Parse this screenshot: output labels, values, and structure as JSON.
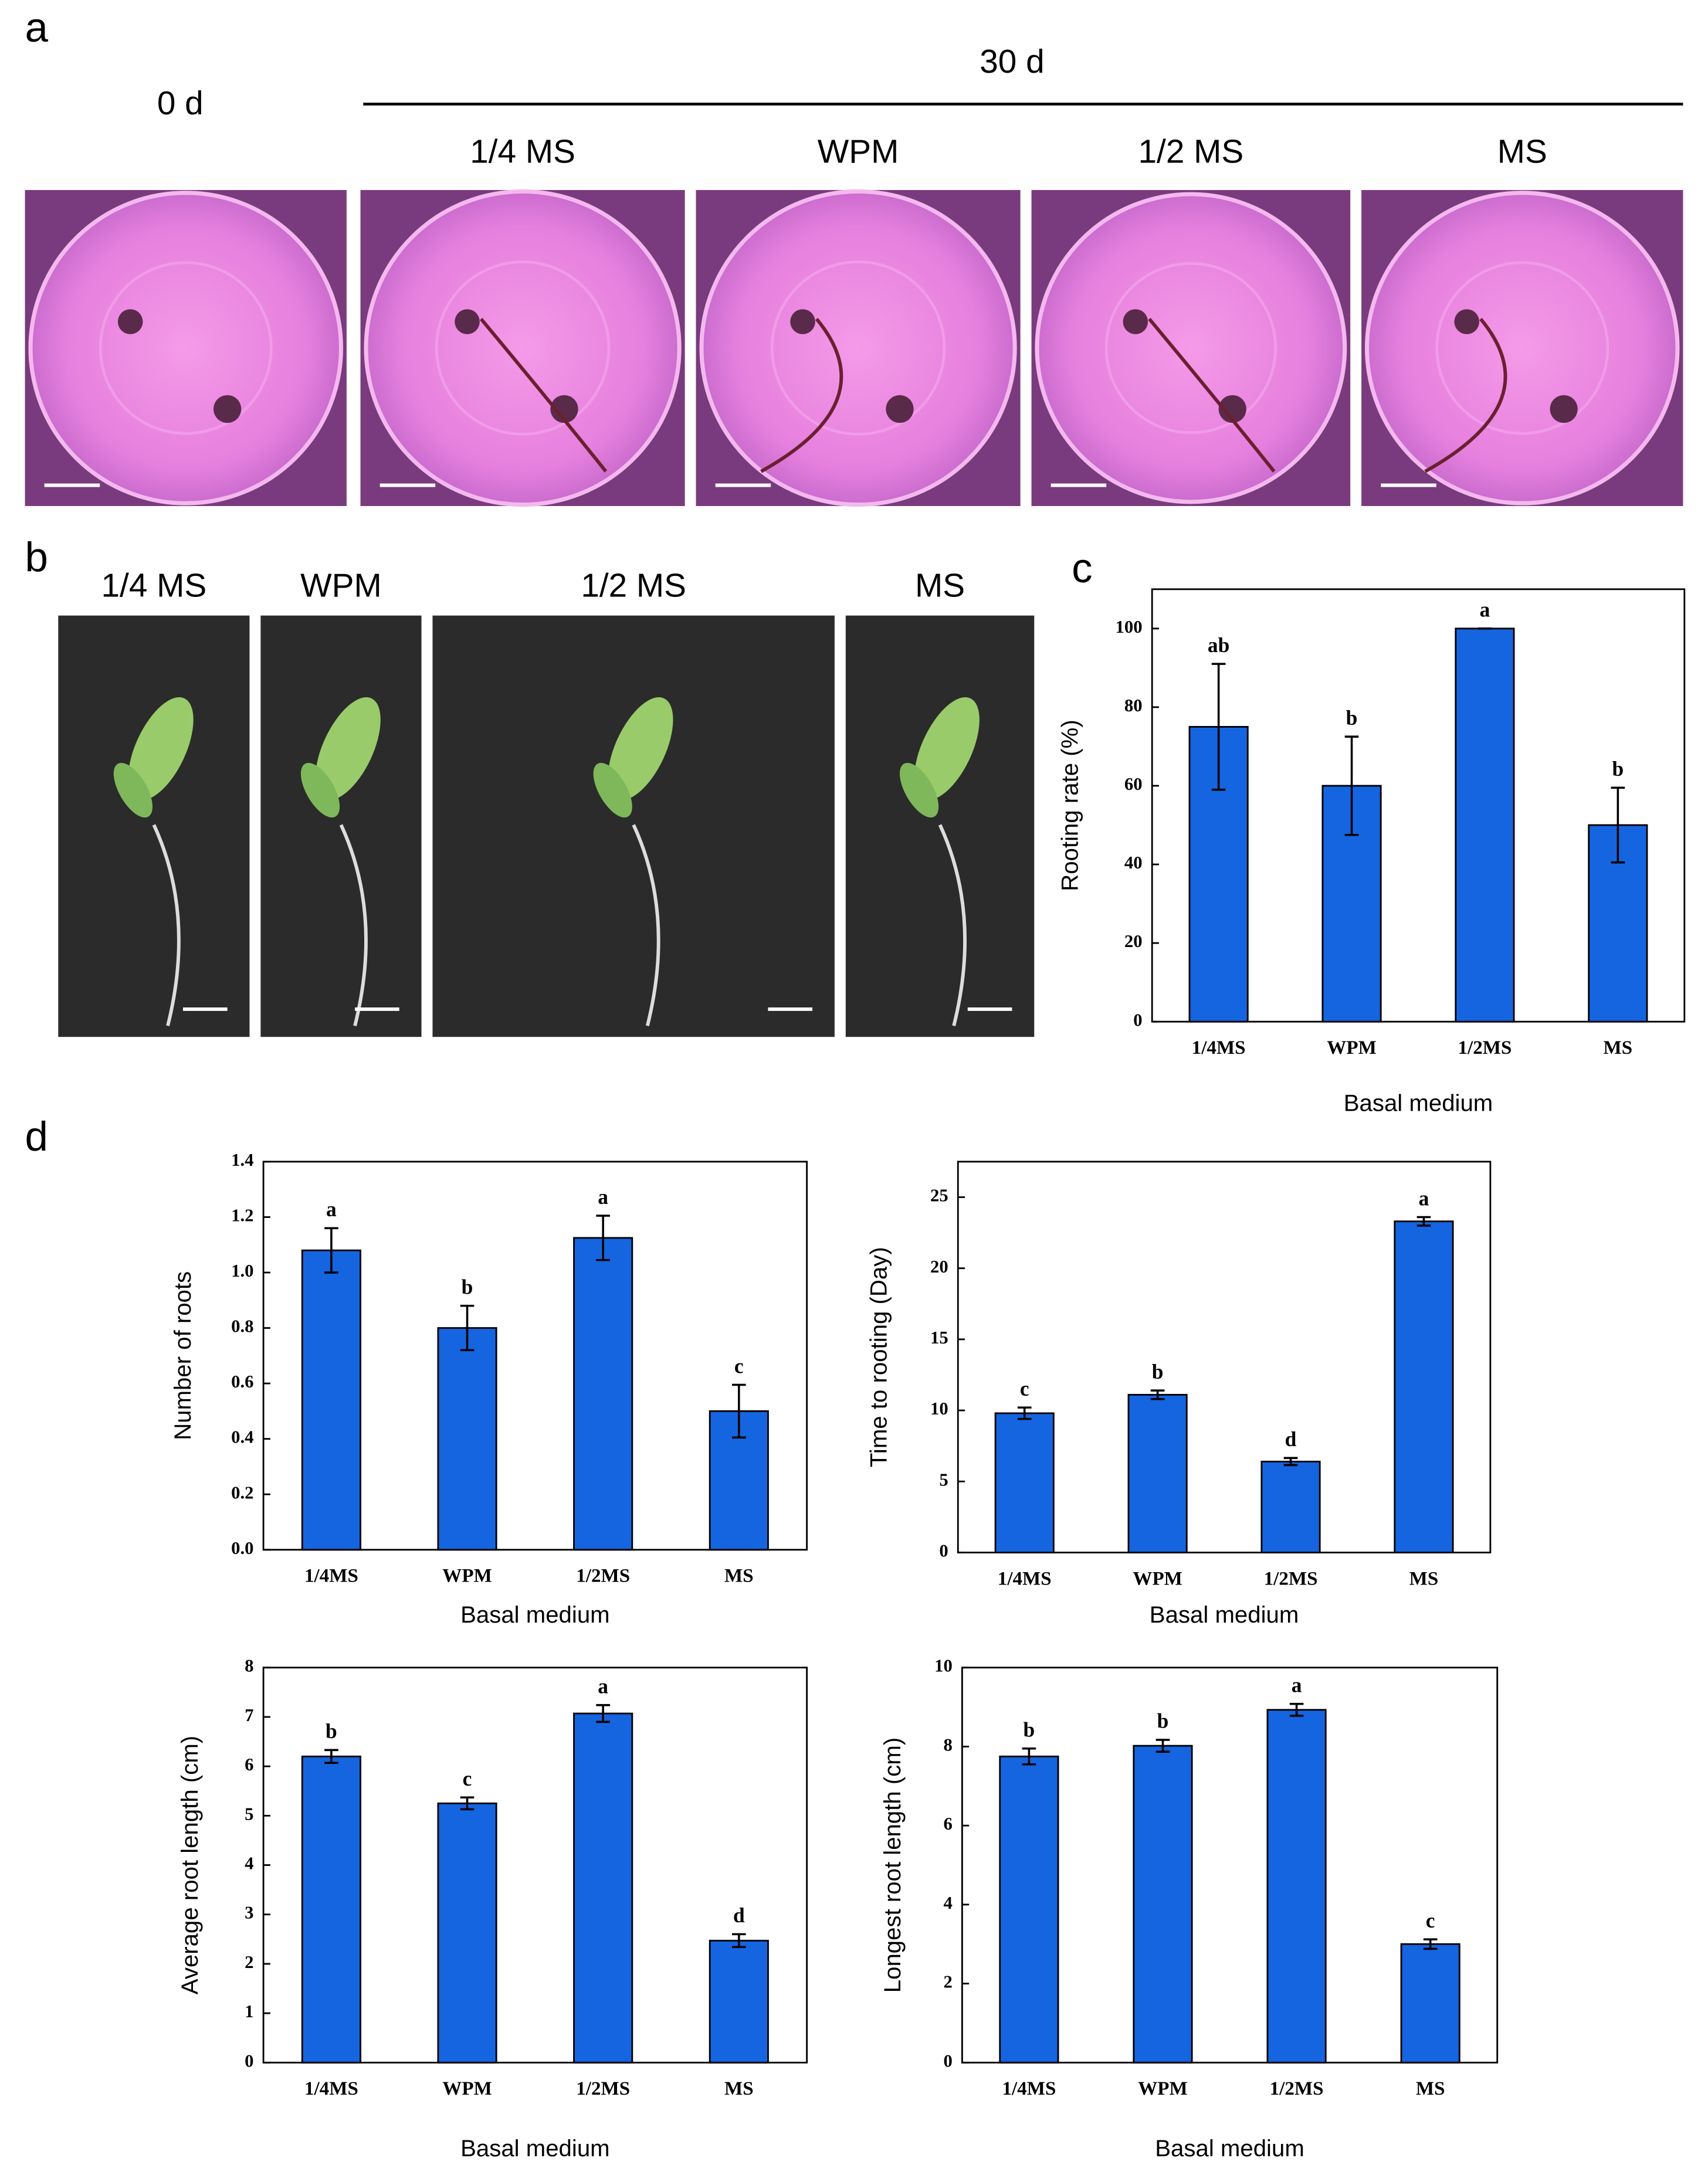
{
  "panel_a": {
    "label": "a",
    "day0": "0 d",
    "day30": "30 d",
    "media": [
      "1/4 MS",
      "WPM",
      "1/2 MS",
      "MS"
    ]
  },
  "panel_b": {
    "label": "b",
    "media": [
      "1/4 MS",
      "WPM",
      "1/2 MS",
      "MS"
    ]
  },
  "panel_c_label": "c",
  "panel_d_label": "d",
  "chart_data": [
    {
      "type": "bar",
      "ylabel": "Rooting rate (%)",
      "xlabel": "Basal medium",
      "color": "#1565e0",
      "categories": [
        "1/4MS",
        "WPM",
        "1/2MS",
        "MS"
      ],
      "values": [
        75,
        60,
        100,
        50
      ],
      "errors": [
        16,
        12.5,
        0,
        9.5
      ],
      "letters": [
        "ab",
        "b",
        "a",
        "b"
      ],
      "ylim": [
        0,
        110
      ],
      "yticks": [
        0,
        20,
        40,
        60,
        80,
        100
      ]
    },
    {
      "type": "bar",
      "ylabel": "Number of roots",
      "xlabel": "Basal medium",
      "color": "#1565e0",
      "categories": [
        "1/4MS",
        "WPM",
        "1/2MS",
        "MS"
      ],
      "values": [
        1.08,
        0.8,
        1.125,
        0.5
      ],
      "errors": [
        0.08,
        0.08,
        0.08,
        0.095
      ],
      "letters": [
        "a",
        "b",
        "a",
        "c"
      ],
      "ylim": [
        0,
        1.4
      ],
      "yticks": [
        {
          "value": 0,
          "label": "0.0"
        },
        0.2,
        0.4,
        0.6,
        0.8,
        {
          "value": 1,
          "label": "1.0"
        },
        1.2,
        1.4
      ]
    },
    {
      "type": "bar",
      "ylabel": "Time to rooting (Day)",
      "xlabel": "Basal medium",
      "color": "#1565e0",
      "categories": [
        "1/4MS",
        "WPM",
        "1/2MS",
        "MS"
      ],
      "values": [
        9.8,
        11.1,
        6.4,
        23.3
      ],
      "errors": [
        0.4,
        0.3,
        0.25,
        0.3
      ],
      "letters": [
        "c",
        "b",
        "d",
        "a"
      ],
      "ylim": [
        0,
        27.5
      ],
      "yticks": [
        0,
        5,
        10,
        15,
        20,
        25
      ]
    },
    {
      "type": "bar",
      "ylabel": "Average root length (cm)",
      "xlabel": "Basal medium",
      "color": "#1565e0",
      "categories": [
        "1/4MS",
        "WPM",
        "1/2MS",
        "MS"
      ],
      "values": [
        6.2,
        5.25,
        7.07,
        2.47
      ],
      "errors": [
        0.13,
        0.12,
        0.17,
        0.13
      ],
      "letters": [
        "b",
        "c",
        "a",
        "d"
      ],
      "ylim": [
        0,
        8
      ],
      "yticks": [
        0,
        1,
        2,
        3,
        4,
        5,
        6,
        7,
        8
      ]
    },
    {
      "type": "bar",
      "ylabel": "Longest root length (cm)",
      "xlabel": "Basal medium",
      "color": "#1565e0",
      "categories": [
        "1/4MS",
        "WPM",
        "1/2MS",
        "MS"
      ],
      "values": [
        7.75,
        8.02,
        8.93,
        3.0
      ],
      "errors": [
        0.2,
        0.15,
        0.15,
        0.12
      ],
      "letters": [
        "b",
        "b",
        "a",
        "c"
      ],
      "ylim": [
        0,
        10
      ],
      "yticks": [
        0,
        2,
        4,
        6,
        8,
        10
      ]
    }
  ]
}
